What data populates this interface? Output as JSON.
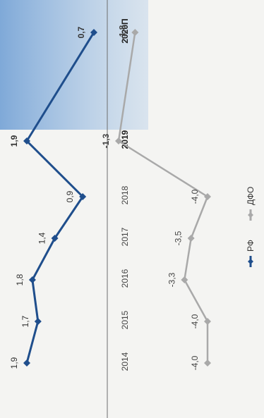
{
  "chart_data": {
    "type": "line",
    "orientation": "rotated-90-ccw",
    "categories": [
      "2014",
      "2015",
      "2016",
      "2017",
      "2018",
      "2019",
      "2020П"
    ],
    "series": [
      {
        "name": "РФ",
        "values": [
          1.9,
          1.7,
          1.8,
          1.4,
          0.9,
          1.9,
          0.7
        ],
        "labels": [
          "1,9",
          "1,7",
          "1,8",
          "1,4",
          "0,9",
          "1,9",
          "0,7"
        ],
        "color": "#1f4e8c"
      },
      {
        "name": "ДФО",
        "values": [
          -4.0,
          -4.0,
          -3.3,
          -3.5,
          -4.0,
          -1.3,
          -1.8
        ],
        "labels": [
          "-4,0",
          "-4,0",
          "-3,3",
          "-3,5",
          "-4,0",
          "-1,3",
          "-1,8"
        ],
        "color": "#a9a9a9"
      }
    ],
    "highlight": {
      "categories": [
        "2019",
        "2020П"
      ],
      "color": "#a8c6e6"
    },
    "emphasized_categories": [
      "2019",
      "2020П"
    ],
    "legend": {
      "placement": "bottom",
      "entries": [
        "РФ",
        "ДФО"
      ]
    },
    "grid": false
  }
}
